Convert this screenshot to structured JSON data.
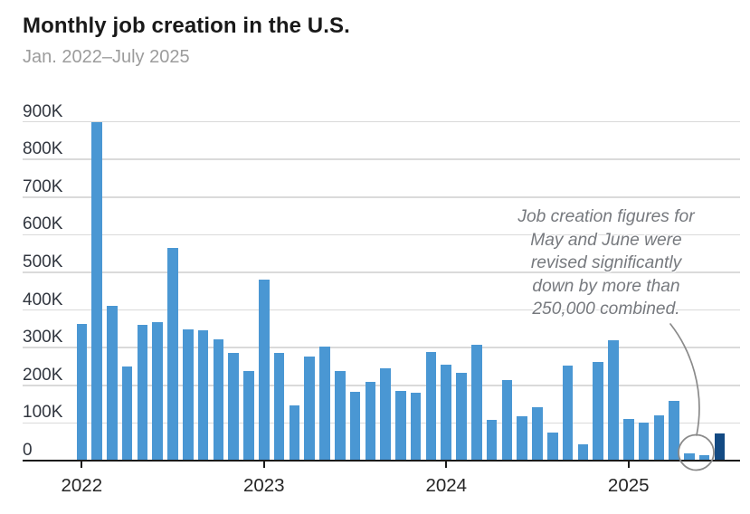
{
  "header": {
    "title": "Monthly job creation in the U.S.",
    "subtitle": "Jan. 2022–July 2025"
  },
  "chart_data": {
    "type": "bar",
    "title": "Monthly job creation in the U.S.",
    "subtitle": "Jan. 2022–July 2025",
    "unit": "jobs added per month (thousands)",
    "categories": [
      "Jan 2022",
      "Feb 2022",
      "Mar 2022",
      "Apr 2022",
      "May 2022",
      "Jun 2022",
      "Jul 2022",
      "Aug 2022",
      "Sep 2022",
      "Oct 2022",
      "Nov 2022",
      "Dec 2022",
      "Jan 2023",
      "Feb 2023",
      "Mar 2023",
      "Apr 2023",
      "May 2023",
      "Jun 2023",
      "Jul 2023",
      "Aug 2023",
      "Sep 2023",
      "Oct 2023",
      "Nov 2023",
      "Dec 2023",
      "Jan 2024",
      "Feb 2024",
      "Mar 2024",
      "Apr 2024",
      "May 2024",
      "Jun 2024",
      "Jul 2024",
      "Aug 2024",
      "Sep 2024",
      "Oct 2024",
      "Nov 2024",
      "Dec 2024",
      "Jan 2025",
      "Feb 2025",
      "Mar 2025",
      "Apr 2025",
      "May 2025",
      "Jun 2025",
      "Jul 2025"
    ],
    "values_thousands": [
      364,
      900,
      411,
      251,
      361,
      368,
      566,
      349,
      347,
      323,
      287,
      237,
      480,
      285,
      146,
      276,
      303,
      238,
      183,
      210,
      246,
      186,
      180,
      288,
      254,
      234,
      308,
      108,
      215,
      117,
      143,
      75,
      253,
      44,
      261,
      319,
      111,
      102,
      120,
      158,
      19,
      14,
      73
    ],
    "ylim_thousands": [
      0,
      900
    ],
    "yticks": [
      "0",
      "100K",
      "200K",
      "300K",
      "400K",
      "500K",
      "600K",
      "700K",
      "800K",
      "900K"
    ],
    "xticks": [
      "2022",
      "2023",
      "2024",
      "2025"
    ],
    "grid": "horizontal",
    "legend": "none",
    "highlight_index": 42,
    "highlight_label": "July 2025",
    "annotation": {
      "text": "Job creation figures for May and June were revised significantly down by more than 250,000 combined.",
      "lines": [
        "Job creation figures for",
        "May and June were",
        "revised significantly",
        "down by more than",
        "250,000 combined."
      ],
      "target": "May 2025 and June 2025 bars (circled)"
    },
    "colors": {
      "bar": "#4a97d3",
      "highlight_bar": "#134a83",
      "grid": "#dadada",
      "axis": "#1a1a1a",
      "annotation_text": "#76797e",
      "callout_stroke": "#8a8a8a",
      "title": "#191919",
      "subtitle": "#9c9c9c"
    }
  }
}
